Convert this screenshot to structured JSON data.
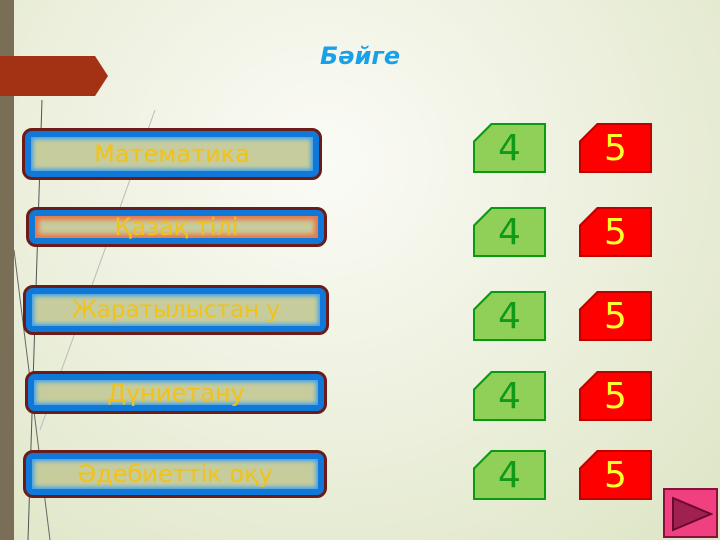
{
  "title": "Бәйге",
  "subjects": [
    {
      "label": "Математика"
    },
    {
      "label": "Қазақ тілі"
    },
    {
      "label": "Жаратылыстан у"
    },
    {
      "label": "Дүниетану"
    },
    {
      "label": "Әдебиеттік оқу"
    }
  ],
  "scores": [
    {
      "green": "4",
      "red": "5"
    },
    {
      "green": "4",
      "red": "5"
    },
    {
      "green": "4",
      "red": "5"
    },
    {
      "green": "4",
      "red": "5"
    },
    {
      "green": "4",
      "red": "5"
    }
  ],
  "next_icon": "play-triangle-icon"
}
